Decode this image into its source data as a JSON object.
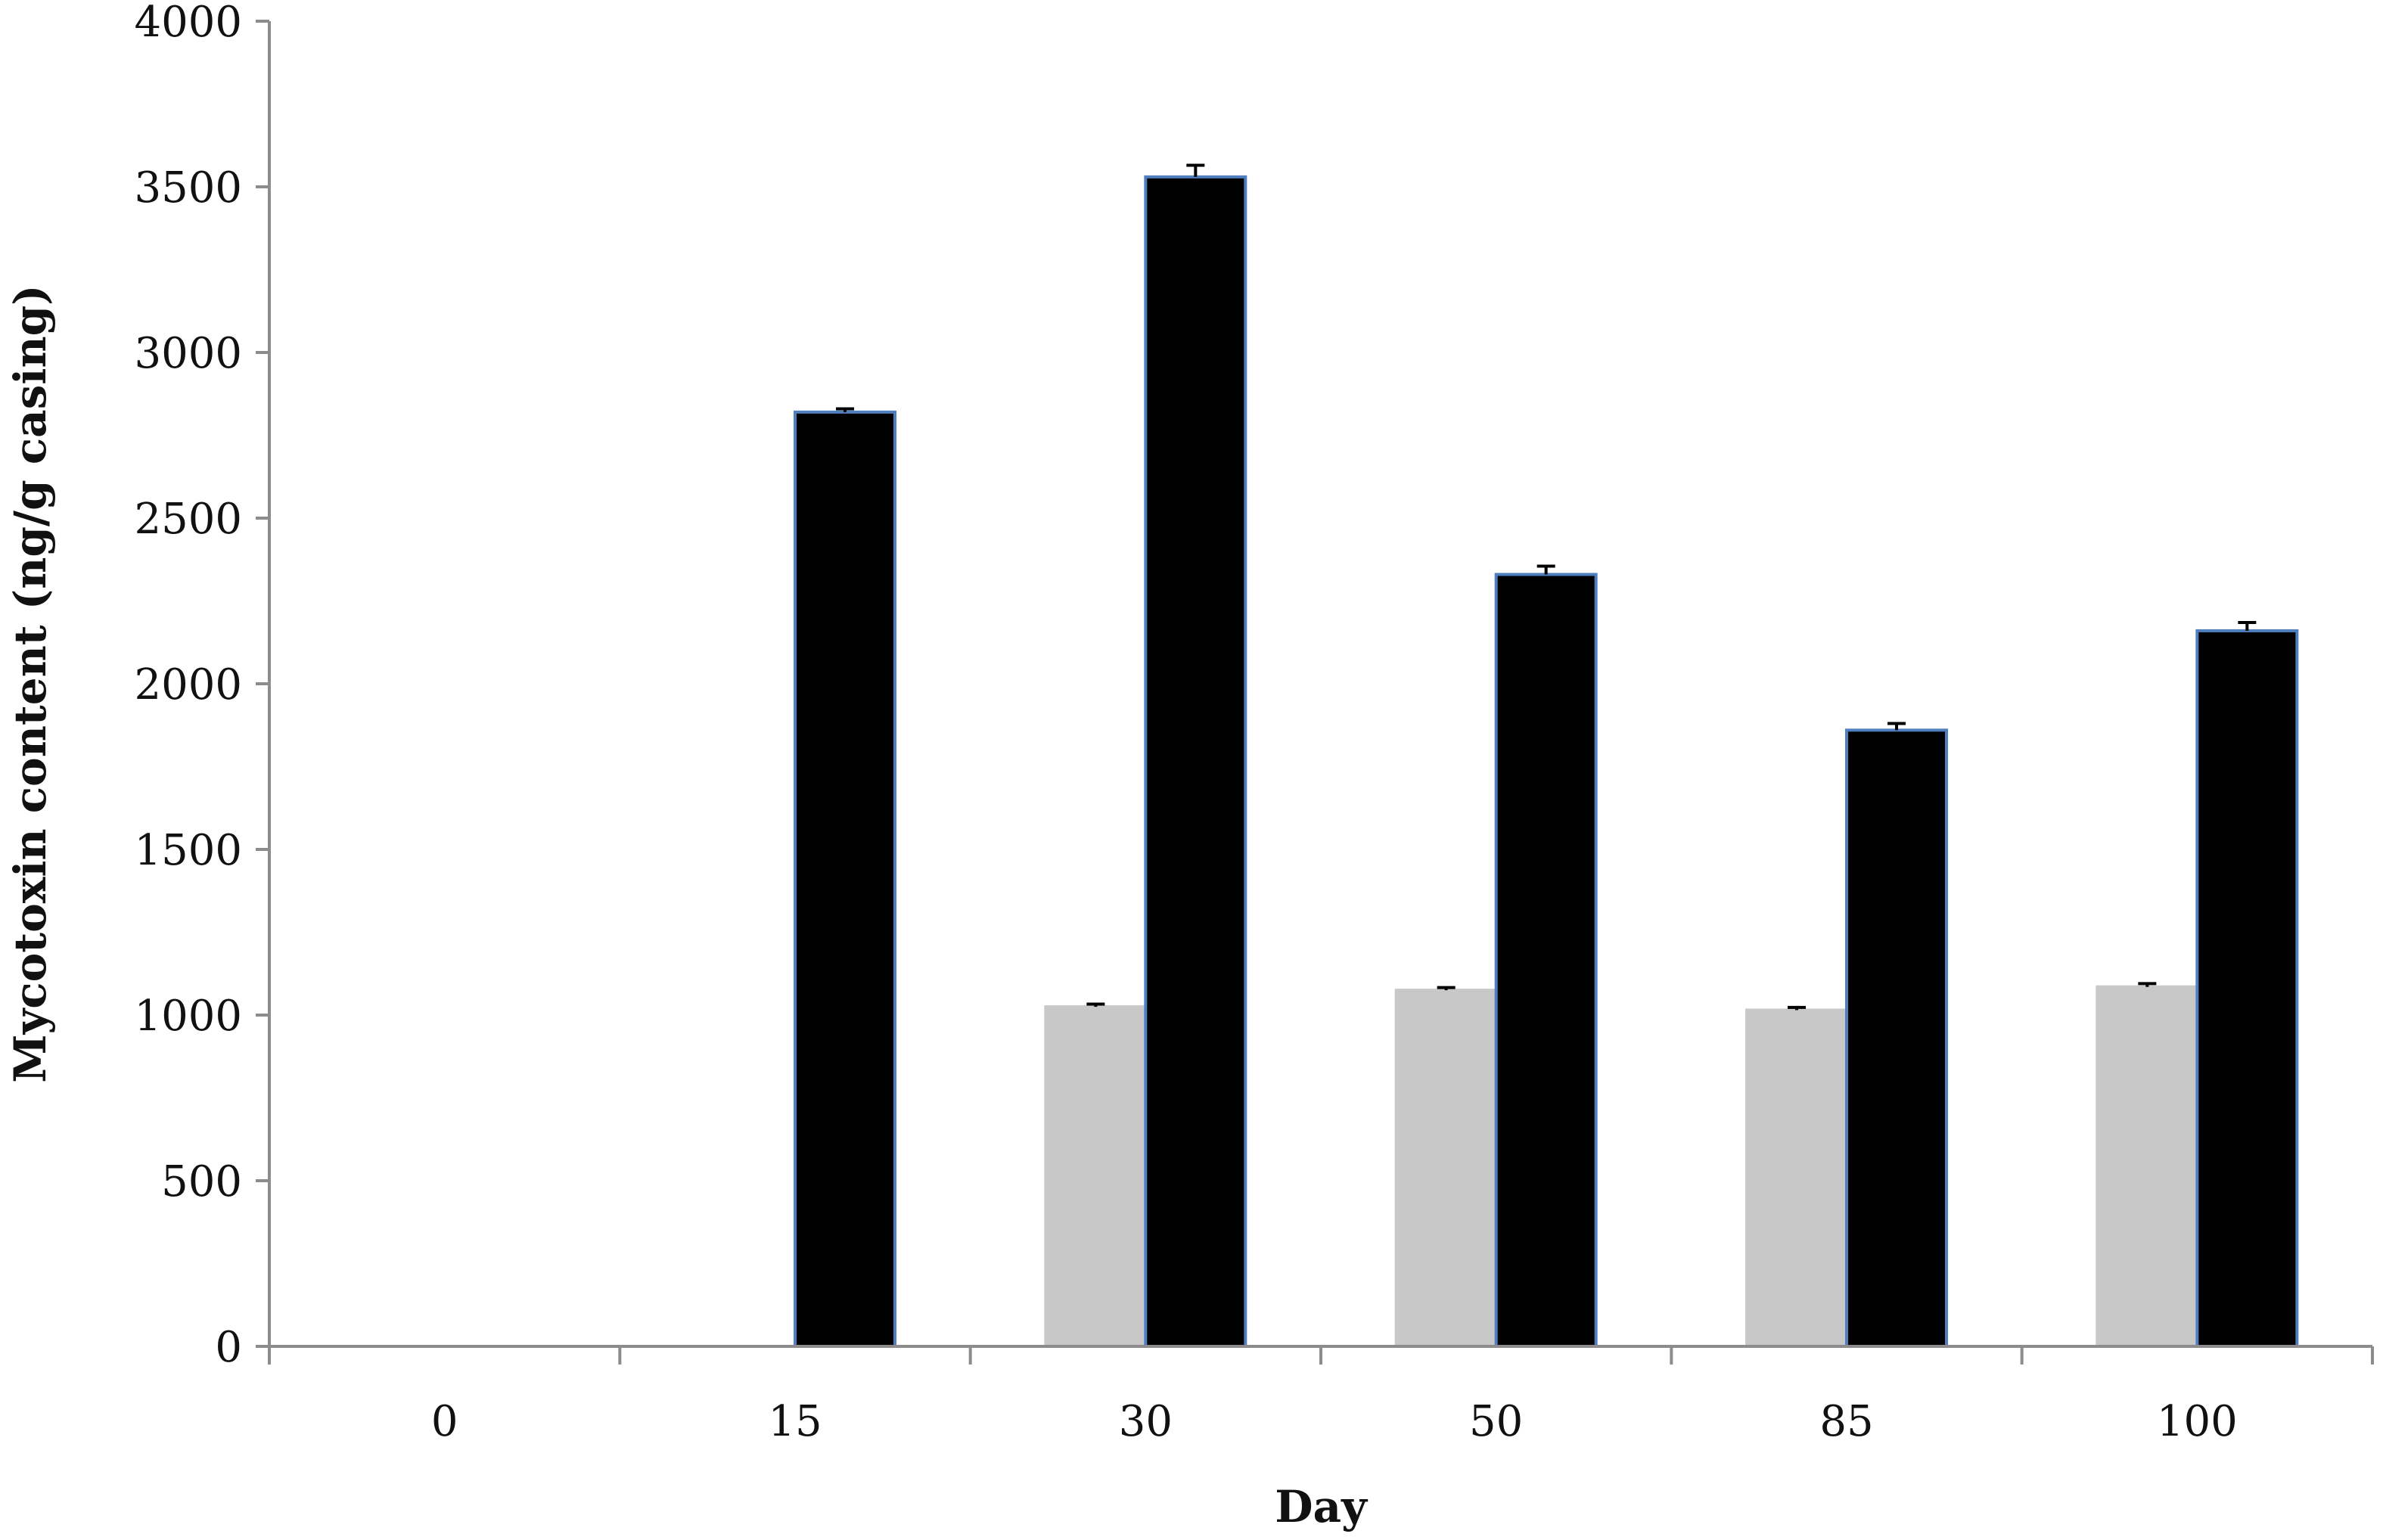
{
  "chart_data": {
    "type": "bar",
    "xlabel": "Day",
    "ylabel": "Mycotoxin content  (ng/g casing)",
    "categories": [
      "0",
      "15",
      "30",
      "50",
      "85",
      "100"
    ],
    "ylim": [
      0,
      4000
    ],
    "yticks": [
      0,
      500,
      1000,
      1500,
      2000,
      2500,
      3000,
      3500,
      4000
    ],
    "grid": false,
    "legend": "none",
    "series": [
      {
        "color": "#c8c8c8",
        "edge_color": "#c8c8c8",
        "values": [
          0,
          0,
          1025,
          1075,
          1015,
          1085
        ],
        "errors": [
          0,
          0,
          8,
          8,
          8,
          10
        ]
      },
      {
        "color": "#000000",
        "edge_color": "#4f7fbf",
        "values": [
          0,
          2820,
          3530,
          2330,
          1860,
          2160
        ],
        "errors": [
          0,
          10,
          35,
          25,
          20,
          25
        ]
      }
    ]
  }
}
